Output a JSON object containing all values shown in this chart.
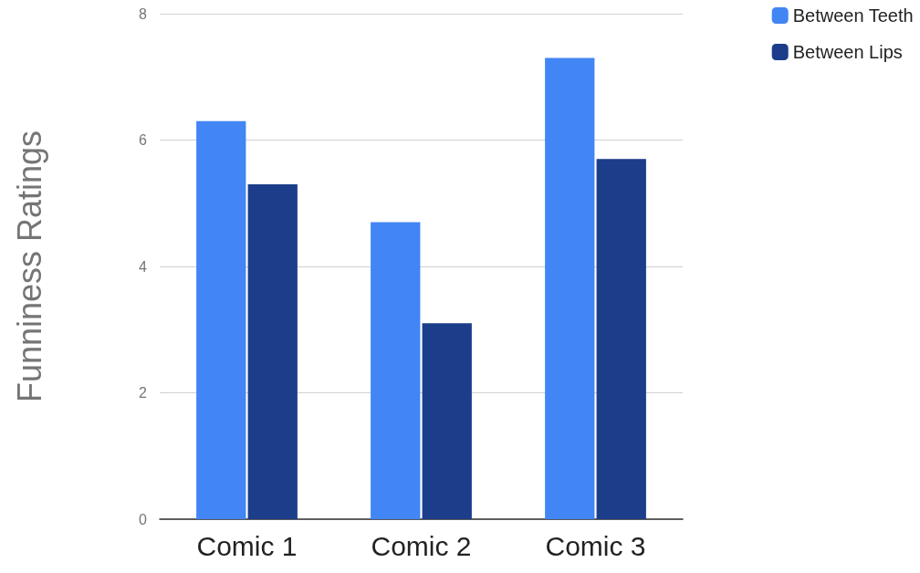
{
  "chart_data": {
    "type": "bar",
    "ylabel": "Funniness Ratings",
    "categories": [
      "Comic 1",
      "Comic 2",
      "Comic 3"
    ],
    "series": [
      {
        "name": "Between Teeth",
        "color": "#4285f4",
        "values": [
          6.3,
          4.7,
          7.3
        ]
      },
      {
        "name": "Between Lips",
        "color": "#1c3d8a",
        "values": [
          5.3,
          3.1,
          5.7
        ]
      }
    ],
    "ylim": [
      0,
      8
    ],
    "yticks": [
      0,
      2,
      4,
      6,
      8
    ],
    "grid": "y",
    "legend": "top right"
  }
}
